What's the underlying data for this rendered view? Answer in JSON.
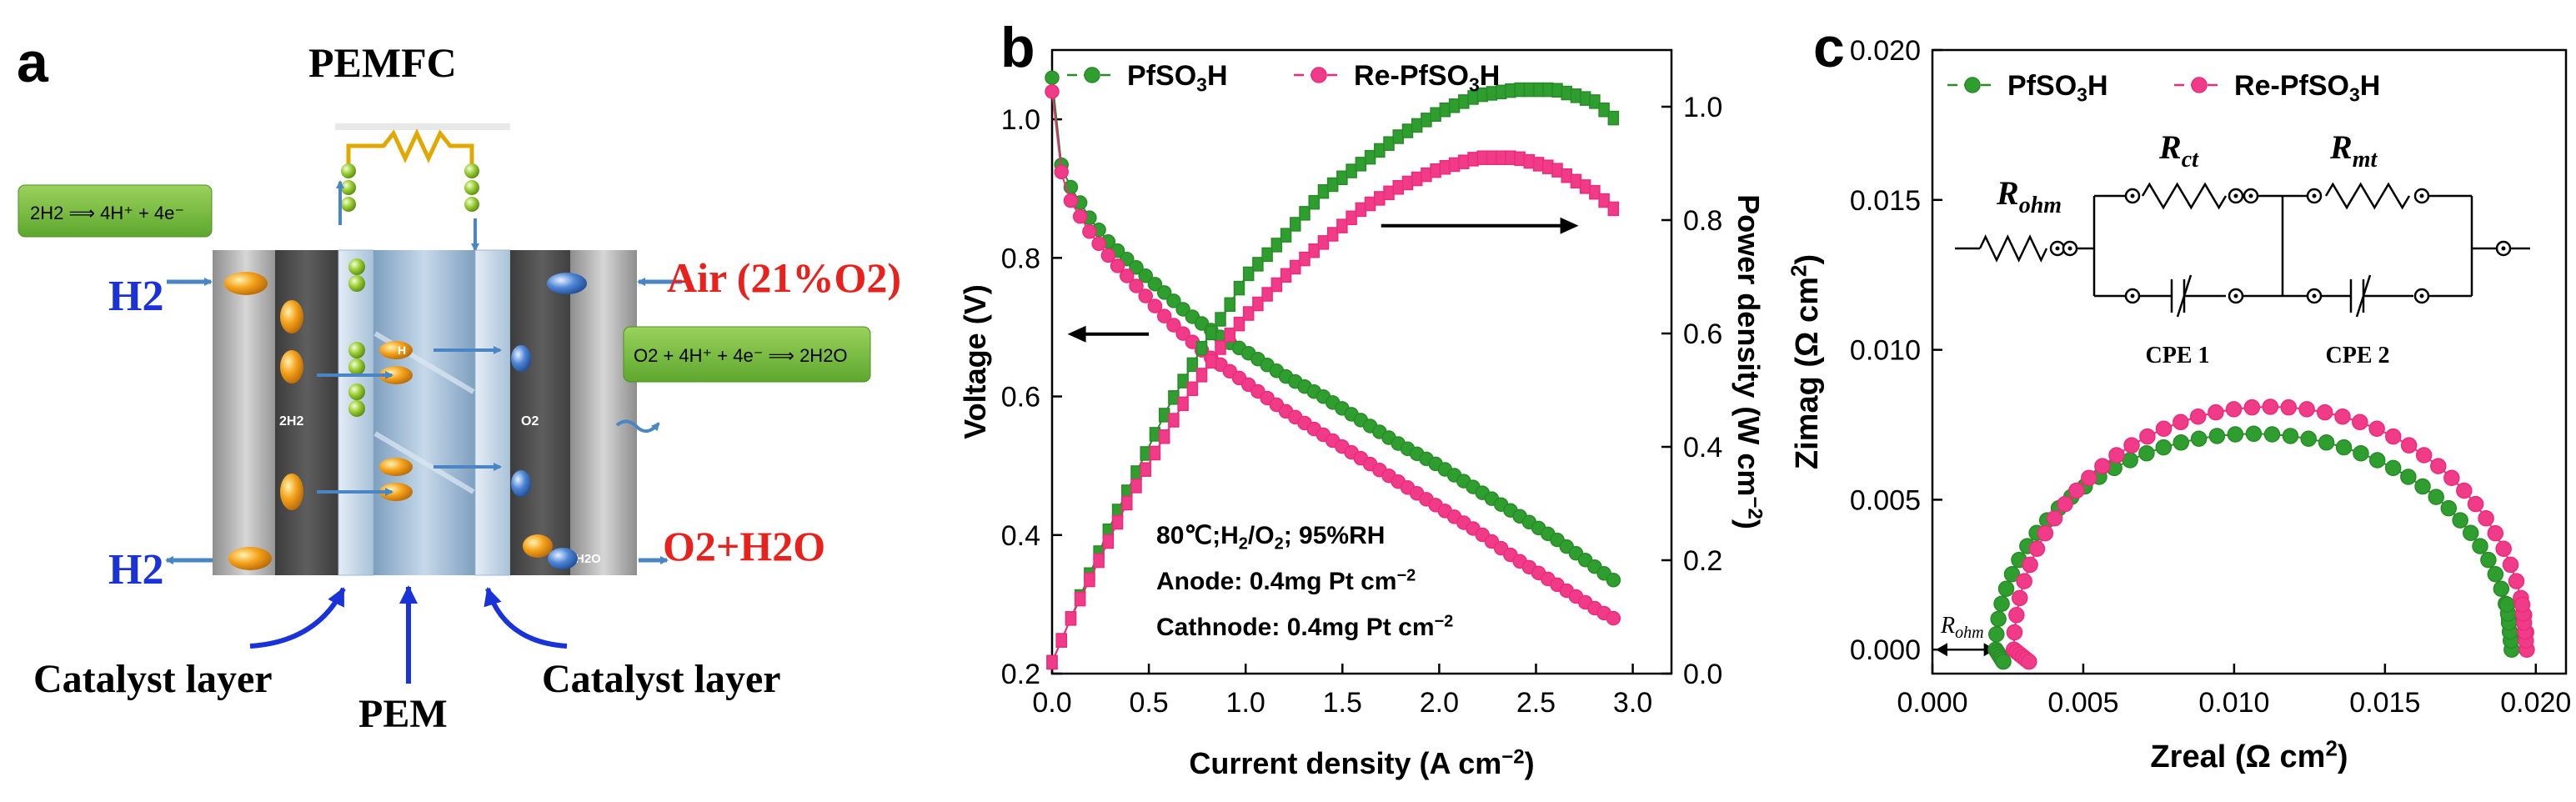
{
  "colors": {
    "green": "#2a8a2a",
    "pink": "#ee2a7b",
    "green_fill": "#2e9e2e",
    "pink_fill": "#f03c88",
    "air": "#e8211c",
    "h2": "#1a33d8",
    "box": "#7cc242"
  },
  "panel_a": {
    "label": "a",
    "title": "PEMFC",
    "h2_in": "H2",
    "h2_out": "H2",
    "air": "Air (21%O2)",
    "o2_h2o": "O2+H2O",
    "anode_rxn": "2H2 ⟹ 4H⁺ + 4e⁻",
    "cathode_rxn": "O2 + 4H⁺ + 4e⁻ ⟹ 2H2O",
    "anode_label": "2H2",
    "cathode_label": "O2",
    "water_label": "H2O",
    "h_label": "H",
    "catalyst_left": "Catalyst layer",
    "pem": "PEM",
    "catalyst_right": "Catalyst layer"
  },
  "chart_data": [
    {
      "type": "line",
      "panel": "b",
      "xlabel": "Current density (A cm−2)",
      "ylabel": "Voltage (V)",
      "y2label": "Power density (W cm−2)",
      "xlim": [
        0,
        3.2
      ],
      "ylim": [
        0.2,
        1.1
      ],
      "y2lim": [
        0,
        1.1
      ],
      "xticks": [
        "0.0",
        "0.5",
        "1.0",
        "1.5",
        "2.0",
        "2.5",
        "3.0"
      ],
      "yticks": [
        "0.2",
        "0.4",
        "0.6",
        "0.8",
        "1.0"
      ],
      "y2ticks": [
        "0.0",
        "0.2",
        "0.4",
        "0.6",
        "0.8",
        "1.0"
      ],
      "legend": [
        "PfSO3H",
        "Re-PfSO3H"
      ],
      "annotations": [
        "80℃;H2/O2; 95%RH",
        "Anode: 0.4mg Pt cm−2",
        "Cathnode: 0.4mg Pt cm−2"
      ],
      "series": [
        {
          "name": "PfSO3H voltage",
          "axis": "left",
          "x": [
            0.0,
            0.05,
            0.1,
            0.2,
            0.3,
            0.4,
            0.5,
            0.6,
            0.7,
            0.8,
            0.9,
            1.0,
            1.2,
            1.4,
            1.6,
            1.8,
            2.0,
            2.2,
            2.4,
            2.6,
            2.8,
            2.9
          ],
          "values": [
            1.06,
            0.93,
            0.9,
            0.855,
            0.82,
            0.795,
            0.77,
            0.745,
            0.72,
            0.7,
            0.68,
            0.665,
            0.63,
            0.6,
            0.565,
            0.53,
            0.5,
            0.465,
            0.43,
            0.395,
            0.355,
            0.335
          ]
        },
        {
          "name": "Re-PfSO3H voltage",
          "axis": "left",
          "x": [
            0.0,
            0.05,
            0.1,
            0.2,
            0.3,
            0.4,
            0.5,
            0.6,
            0.7,
            0.8,
            0.9,
            1.0,
            1.2,
            1.4,
            1.6,
            1.8,
            2.0,
            2.2,
            2.4,
            2.6,
            2.8,
            2.9
          ],
          "values": [
            1.04,
            0.92,
            0.88,
            0.835,
            0.8,
            0.77,
            0.74,
            0.71,
            0.685,
            0.66,
            0.64,
            0.62,
            0.58,
            0.545,
            0.51,
            0.475,
            0.44,
            0.405,
            0.365,
            0.33,
            0.295,
            0.28
          ]
        },
        {
          "name": "PfSO3H power",
          "axis": "right",
          "x": [
            0.0,
            0.1,
            0.2,
            0.3,
            0.4,
            0.5,
            0.6,
            0.7,
            0.8,
            0.9,
            1.0,
            1.2,
            1.4,
            1.6,
            1.8,
            2.0,
            2.2,
            2.4,
            2.6,
            2.8,
            2.9
          ],
          "values": [
            0.02,
            0.1,
            0.18,
            0.26,
            0.33,
            0.4,
            0.47,
            0.53,
            0.59,
            0.64,
            0.7,
            0.77,
            0.85,
            0.9,
            0.95,
            0.99,
            1.02,
            1.03,
            1.03,
            1.01,
            0.98
          ]
        },
        {
          "name": "Re-PfSO3H power",
          "axis": "right",
          "x": [
            0.0,
            0.1,
            0.2,
            0.3,
            0.4,
            0.5,
            0.6,
            0.7,
            0.8,
            0.9,
            1.0,
            1.2,
            1.4,
            1.6,
            1.8,
            2.0,
            2.2,
            2.4,
            2.6,
            2.8,
            2.9
          ],
          "values": [
            0.02,
            0.1,
            0.17,
            0.24,
            0.31,
            0.37,
            0.43,
            0.49,
            0.54,
            0.59,
            0.63,
            0.7,
            0.76,
            0.82,
            0.86,
            0.89,
            0.91,
            0.91,
            0.89,
            0.85,
            0.82
          ]
        }
      ]
    },
    {
      "type": "scatter",
      "panel": "c",
      "xlabel": "Zreal  (Ω cm2)",
      "ylabel": "Zimag  (Ω cm2)",
      "xlim": [
        0,
        0.021
      ],
      "ylim": [
        -0.0008,
        0.02
      ],
      "xticks": [
        "0.000",
        "0.005",
        "0.010",
        "0.015",
        "0.020"
      ],
      "yticks": [
        "0.000",
        "0.005",
        "0.010",
        "0.015",
        "0.020"
      ],
      "legend": [
        "PfSO3H",
        "Re-PfSO3H"
      ],
      "circuit_labels": {
        "rohm": "Rohm",
        "rct": "Rct",
        "rmt": "Rmt",
        "cpe1": "CPE 1",
        "cpe2": "CPE 2"
      },
      "rohm_marker": "Rohm",
      "series": [
        {
          "name": "PfSO3H",
          "center": 0.01065,
          "radius": 0.00855,
          "ymax": 0.0072
        },
        {
          "name": "Re-PfSO3H",
          "center": 0.0112,
          "radius": 0.0085,
          "ymax": 0.0081
        }
      ]
    }
  ]
}
